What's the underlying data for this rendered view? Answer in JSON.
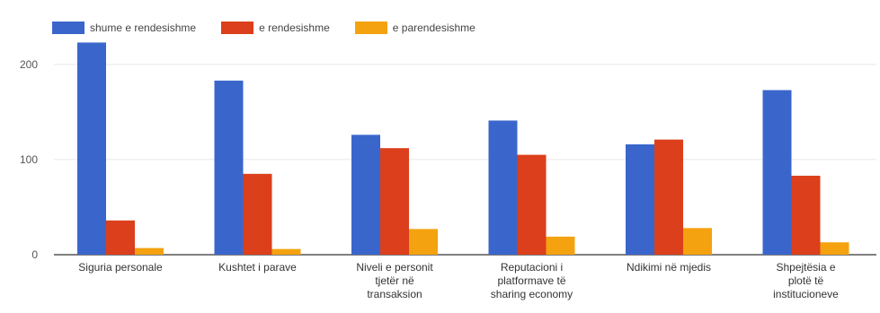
{
  "chart_data": {
    "type": "bar",
    "title": "",
    "xlabel": "",
    "ylabel": "",
    "ylim": [
      0,
      230
    ],
    "yticks": [
      0,
      100,
      200
    ],
    "grid": true,
    "legend_position": "top-left",
    "categories": [
      [
        "Siguria personale"
      ],
      [
        "Kushtet i parave"
      ],
      [
        "Niveli e personit",
        "tjetër në",
        "transaksion"
      ],
      [
        "Reputacioni i",
        "platformave të",
        "sharing economy"
      ],
      [
        "Ndikimi në mjedis"
      ],
      [
        "Shpejtësia e",
        "plotë të",
        "institucioneve"
      ]
    ],
    "series": [
      {
        "name": "shume e rendesishme",
        "color": "#3a66cc",
        "values": [
          223,
          183,
          126,
          141,
          116,
          173
        ]
      },
      {
        "name": "e rendesishme",
        "color": "#dc3f1b",
        "values": [
          36,
          85,
          112,
          105,
          121,
          83
        ]
      },
      {
        "name": "e parendesishme",
        "color": "#f4a20f",
        "values": [
          7,
          6,
          27,
          19,
          28,
          13
        ]
      }
    ]
  }
}
